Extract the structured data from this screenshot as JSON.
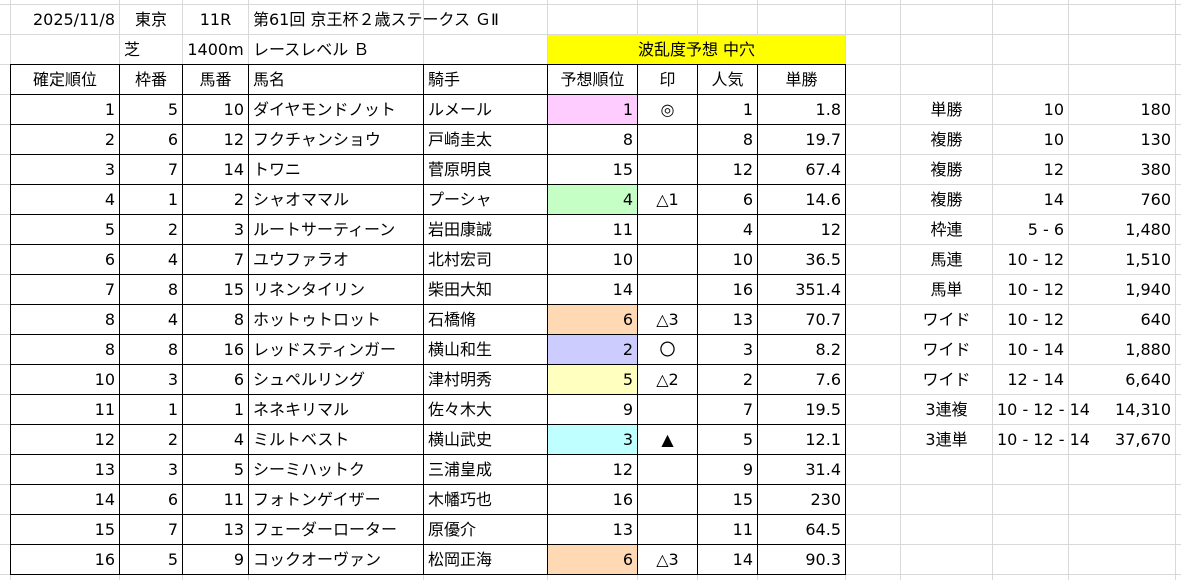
{
  "header": {
    "date": "2025/11/8",
    "venue": "東京",
    "race_no": "11R",
    "race_name": "第61回 京王杯２歳ステークス ＧⅡ",
    "surface": "芝",
    "distance": "1400m",
    "race_level": "レースレベル Ｂ",
    "upset_forecast": "波乱度予想 中穴"
  },
  "colors": {
    "upset_bg": "#ffff00",
    "pink": "#ffccff",
    "green": "#c6ffc6",
    "orange": "#ffd9b3",
    "blue": "#ccccff",
    "yellow": "#ffffbf",
    "cyan": "#bfffff"
  },
  "columns": [
    "確定順位",
    "枠番",
    "馬番",
    "馬名",
    "騎手",
    "予想順位",
    "印",
    "人気",
    "単勝"
  ],
  "rows": [
    {
      "rank": "1",
      "waku": "5",
      "umaban": "10",
      "name": "ダイヤモンドノット",
      "jockey": "ルメール",
      "pred": "1",
      "mark": "◎",
      "pop": "1",
      "odds": "1.8",
      "hl": "pink"
    },
    {
      "rank": "2",
      "waku": "6",
      "umaban": "12",
      "name": "フクチャンショウ",
      "jockey": "戸崎圭太",
      "pred": "8",
      "mark": "",
      "pop": "8",
      "odds": "19.7",
      "hl": ""
    },
    {
      "rank": "3",
      "waku": "7",
      "umaban": "14",
      "name": "トワニ",
      "jockey": "菅原明良",
      "pred": "15",
      "mark": "",
      "pop": "12",
      "odds": "67.4",
      "hl": ""
    },
    {
      "rank": "4",
      "waku": "1",
      "umaban": "2",
      "name": "シャオママル",
      "jockey": "プーシャ",
      "pred": "4",
      "mark": "△1",
      "pop": "6",
      "odds": "14.6",
      "hl": "green"
    },
    {
      "rank": "5",
      "waku": "2",
      "umaban": "3",
      "name": "ルートサーティーン",
      "jockey": "岩田康誠",
      "pred": "11",
      "mark": "",
      "pop": "4",
      "odds": "12",
      "hl": ""
    },
    {
      "rank": "6",
      "waku": "4",
      "umaban": "7",
      "name": "ユウファラオ",
      "jockey": "北村宏司",
      "pred": "10",
      "mark": "",
      "pop": "10",
      "odds": "36.5",
      "hl": ""
    },
    {
      "rank": "7",
      "waku": "8",
      "umaban": "15",
      "name": "リネンタイリン",
      "jockey": "柴田大知",
      "pred": "14",
      "mark": "",
      "pop": "16",
      "odds": "351.4",
      "hl": ""
    },
    {
      "rank": "8",
      "waku": "4",
      "umaban": "8",
      "name": "ホットゥトロット",
      "jockey": "石橋脩",
      "pred": "6",
      "mark": "△3",
      "pop": "13",
      "odds": "70.7",
      "hl": "orange"
    },
    {
      "rank": "8",
      "waku": "8",
      "umaban": "16",
      "name": "レッドスティンガー",
      "jockey": "横山和生",
      "pred": "2",
      "mark": "〇",
      "pop": "3",
      "odds": "8.2",
      "hl": "blue"
    },
    {
      "rank": "10",
      "waku": "3",
      "umaban": "6",
      "name": "シュペルリング",
      "jockey": "津村明秀",
      "pred": "5",
      "mark": "△2",
      "pop": "2",
      "odds": "7.6",
      "hl": "yellow"
    },
    {
      "rank": "11",
      "waku": "1",
      "umaban": "1",
      "name": "ネネキリマル",
      "jockey": "佐々木大",
      "pred": "9",
      "mark": "",
      "pop": "7",
      "odds": "19.5",
      "hl": ""
    },
    {
      "rank": "12",
      "waku": "2",
      "umaban": "4",
      "name": "ミルトベスト",
      "jockey": "横山武史",
      "pred": "3",
      "mark": "▲",
      "pop": "5",
      "odds": "12.1",
      "hl": "cyan"
    },
    {
      "rank": "13",
      "waku": "3",
      "umaban": "5",
      "name": "シーミハットク",
      "jockey": "三浦皇成",
      "pred": "12",
      "mark": "",
      "pop": "9",
      "odds": "31.4",
      "hl": ""
    },
    {
      "rank": "14",
      "waku": "6",
      "umaban": "11",
      "name": "フォトンゲイザー",
      "jockey": "木幡巧也",
      "pred": "16",
      "mark": "",
      "pop": "15",
      "odds": "230",
      "hl": ""
    },
    {
      "rank": "15",
      "waku": "7",
      "umaban": "13",
      "name": "フェーダーローター",
      "jockey": "原優介",
      "pred": "13",
      "mark": "",
      "pop": "11",
      "odds": "64.5",
      "hl": ""
    },
    {
      "rank": "16",
      "waku": "5",
      "umaban": "9",
      "name": "コックオーヴァン",
      "jockey": "松岡正海",
      "pred": "6",
      "mark": "△3",
      "pop": "14",
      "odds": "90.3",
      "hl": "orange"
    }
  ],
  "payouts": [
    {
      "type": "単勝",
      "combo": "10",
      "amount": "180"
    },
    {
      "type": "複勝",
      "combo": "10",
      "amount": "130"
    },
    {
      "type": "複勝",
      "combo": "12",
      "amount": "380"
    },
    {
      "type": "複勝",
      "combo": "14",
      "amount": "760"
    },
    {
      "type": "枠連",
      "combo": "5 - 6",
      "amount": "1,480"
    },
    {
      "type": "馬連",
      "combo": "10 - 12",
      "amount": "1,510"
    },
    {
      "type": "馬単",
      "combo": "10 - 12",
      "amount": "1,940"
    },
    {
      "type": "ワイド",
      "combo": "10 - 12",
      "amount": "640"
    },
    {
      "type": "ワイド",
      "combo": "10 - 14",
      "amount": "1,880"
    },
    {
      "type": "ワイド",
      "combo": "12 - 14",
      "amount": "6,640"
    },
    {
      "type": "3連複",
      "combo": "10 - 12 - 14",
      "amount": "14,310"
    },
    {
      "type": "3連単",
      "combo": "10 - 12 - 14",
      "amount": "37,670"
    }
  ]
}
